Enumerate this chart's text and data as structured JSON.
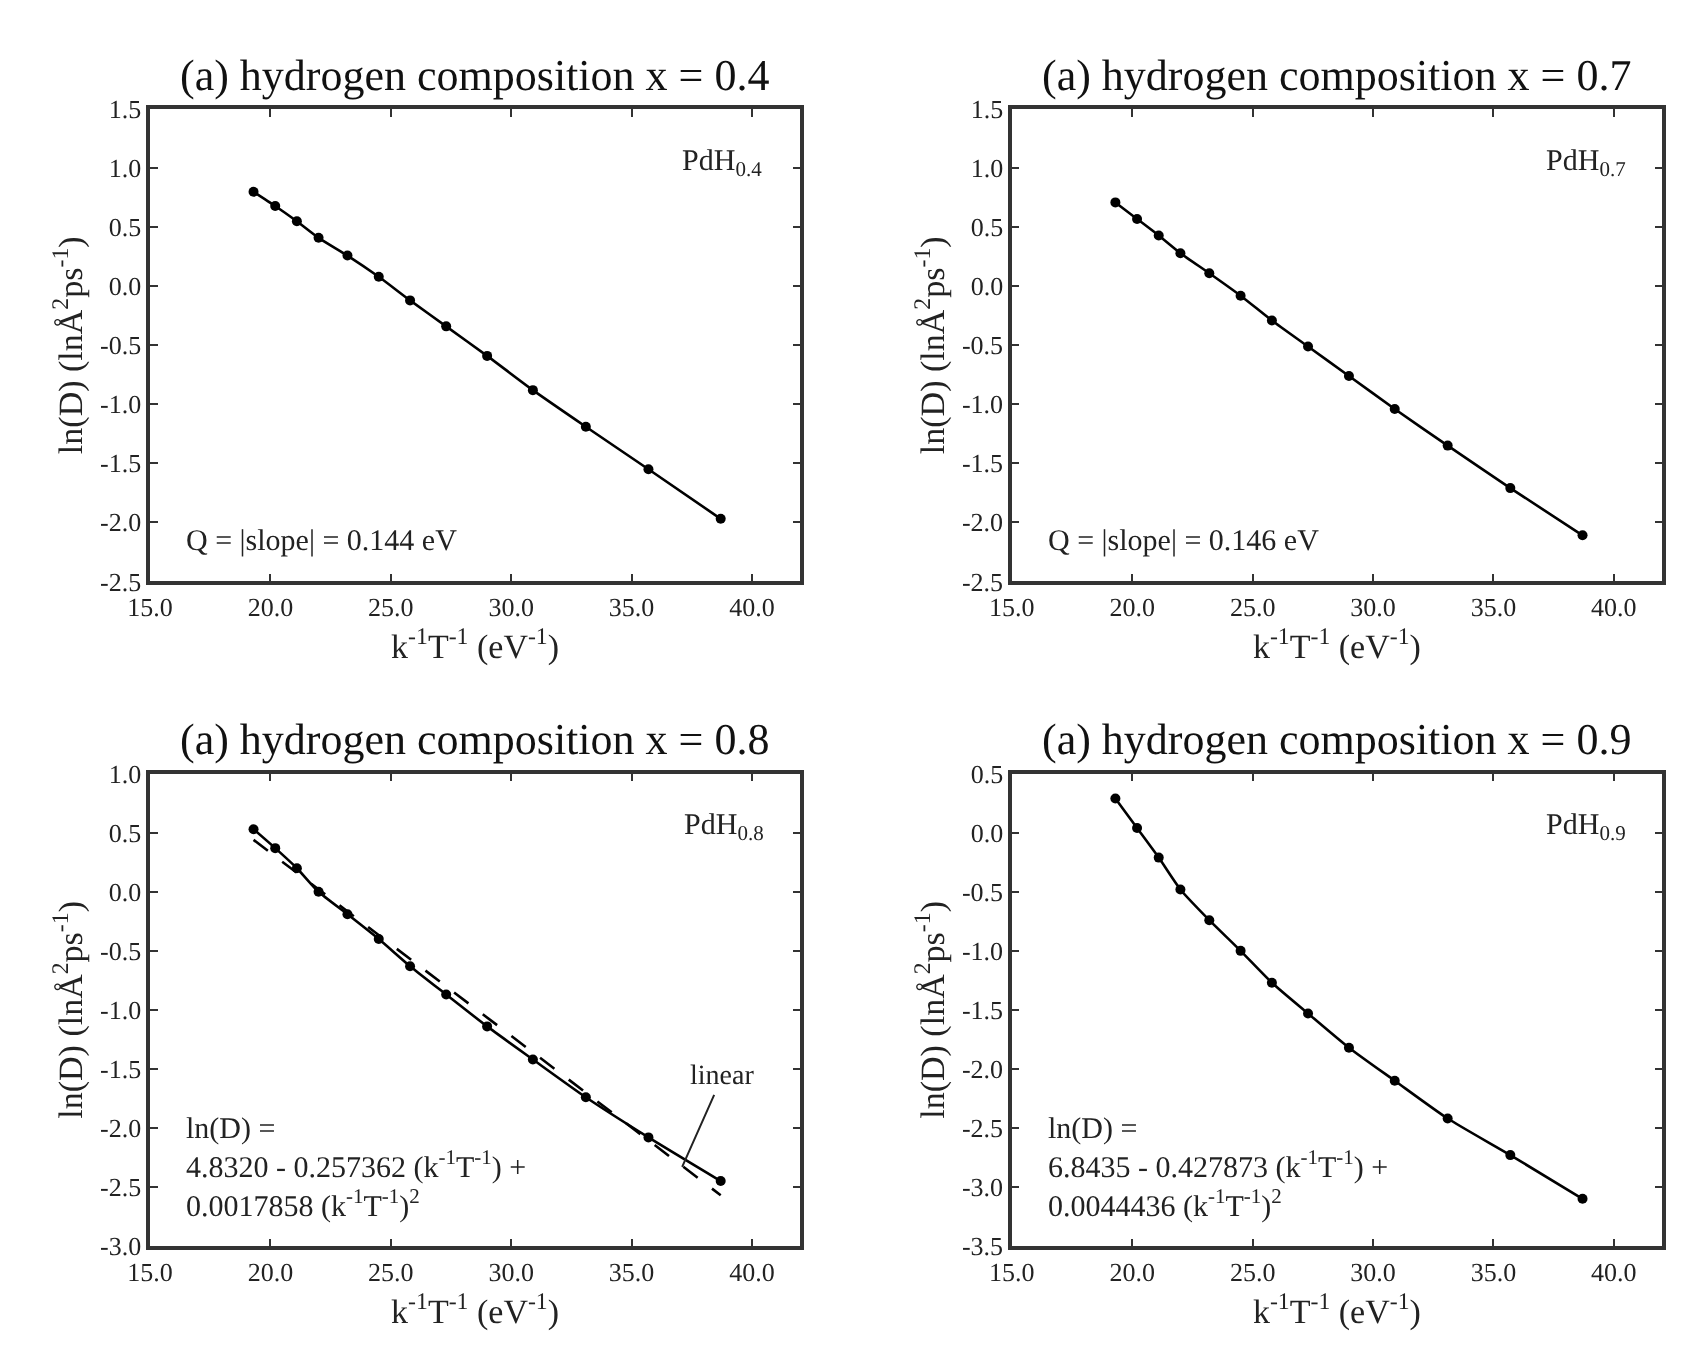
{
  "chart_data": [
    {
      "type": "line",
      "title": "(a) hydrogen composition x = 0.4",
      "xlabel": "k$^{-1}$T$^{-1}$ (eV$^{-1}$)",
      "ylabel": "ln(D) (lnÅ$^{2}$ps$^{-1}$)",
      "x": [
        19.3,
        20.2,
        21.1,
        22.0,
        23.2,
        24.5,
        25.8,
        27.3,
        29.0,
        30.9,
        33.1,
        35.7,
        38.7
      ],
      "series": [
        {
          "color": "#000000",
          "marker": "circle",
          "line_style": "solid",
          "values": [
            0.8,
            0.68,
            0.55,
            0.41,
            0.26,
            0.08,
            -0.12,
            -0.34,
            -0.59,
            -0.88,
            -1.19,
            -1.55,
            -1.97
          ]
        }
      ],
      "annotations": [
        "PdH$_{0.4}$",
        "Q = |slope| = 0.144 eV"
      ],
      "xlim": [
        15,
        42
      ],
      "xticks": [
        {
          "value": 15,
          "label": "15.0"
        },
        {
          "value": 20,
          "label": "20.0"
        },
        {
          "value": 25,
          "label": "25.0"
        },
        {
          "value": 30,
          "label": "30.0"
        },
        {
          "value": 35,
          "label": "35.0"
        },
        {
          "value": 40,
          "label": "40.0"
        }
      ],
      "ylim": [
        -2.5,
        1.5
      ],
      "yticks": [
        -2.5,
        {
          "value": -2,
          "label": "-2.0"
        },
        -1.5,
        {
          "value": -1,
          "label": "-1.0"
        },
        -0.5,
        {
          "value": 0,
          "label": "0.0"
        },
        0.5,
        {
          "value": 1,
          "label": "1.0"
        },
        1.5
      ]
    },
    {
      "type": "line",
      "title": "(a) hydrogen composition x = 0.7",
      "xlabel": "k$^{-1}$T$^{-1}$ (eV$^{-1}$)",
      "ylabel": "ln(D) (lnÅ$^{2}$ps$^{-1}$)",
      "x": [
        19.3,
        20.2,
        21.1,
        22.0,
        23.2,
        24.5,
        25.8,
        27.3,
        29.0,
        30.9,
        33.1,
        35.7,
        38.7
      ],
      "series": [
        {
          "color": "#000000",
          "marker": "circle",
          "line_style": "solid",
          "values": [
            0.71,
            0.57,
            0.43,
            0.28,
            0.11,
            -0.08,
            -0.29,
            -0.51,
            -0.76,
            -1.04,
            -1.35,
            -1.71,
            -2.11
          ]
        }
      ],
      "annotations": [
        "PdH$_{0.7}$",
        "Q = |slope| = 0.146 eV"
      ],
      "xlim": [
        15,
        42
      ],
      "xticks": [
        {
          "value": 15,
          "label": "15.0"
        },
        {
          "value": 20,
          "label": "20.0"
        },
        {
          "value": 25,
          "label": "25.0"
        },
        {
          "value": 30,
          "label": "30.0"
        },
        {
          "value": 35,
          "label": "35.0"
        },
        {
          "value": 40,
          "label": "40.0"
        }
      ],
      "ylim": [
        -2.5,
        1.5
      ],
      "yticks": [
        -2.5,
        {
          "value": -2,
          "label": "-2.0"
        },
        -1.5,
        {
          "value": -1,
          "label": "-1.0"
        },
        -0.5,
        {
          "value": 0,
          "label": "0.0"
        },
        0.5,
        {
          "value": 1,
          "label": "1.0"
        },
        1.5
      ]
    },
    {
      "type": "line",
      "title": "(a) hydrogen composition x = 0.8",
      "xlabel": "k$^{-1}$T$^{-1}$ (eV$^{-1}$)",
      "ylabel": "ln(D) (lnÅ$^{2}$ps$^{-1}$)",
      "x": [
        19.3,
        20.2,
        21.1,
        22.0,
        23.2,
        24.5,
        25.8,
        27.3,
        29.0,
        30.9,
        33.1,
        35.7,
        38.7
      ],
      "series": [
        {
          "color": "#000000",
          "marker": "circle",
          "line_style": "solid",
          "values": [
            0.53,
            0.37,
            0.2,
            0.0,
            -0.19,
            -0.4,
            -0.63,
            -0.87,
            -1.14,
            -1.42,
            -1.74,
            -2.08,
            -2.45
          ]
        },
        {
          "color": "#000000",
          "marker": "none",
          "line_style": "dashed",
          "x": [
            19.3,
            38.7
          ],
          "values": [
            0.44,
            -2.57
          ]
        }
      ],
      "annotations": [
        "PdH$_{0.8}$",
        "ln(D) =\n4.8320 - 0.257362 (k$^{-1}$T$^{-1}$) +\n0.0017858 (k$^{-1}$T$^{-1}$)$^{2}$",
        {
          "text": "linear",
          "x": 37.1,
          "y": -2.33
        }
      ],
      "xlim": [
        15,
        42
      ],
      "xticks": [
        {
          "value": 15,
          "label": "15.0"
        },
        {
          "value": 20,
          "label": "20.0"
        },
        {
          "value": 25,
          "label": "25.0"
        },
        {
          "value": 30,
          "label": "30.0"
        },
        {
          "value": 35,
          "label": "35.0"
        },
        {
          "value": 40,
          "label": "40.0"
        }
      ],
      "ylim": [
        -3.0,
        1.0
      ],
      "yticks": [
        {
          "value": -3,
          "label": "-3.0"
        },
        -2.5,
        {
          "value": -2,
          "label": "-2.0"
        },
        -1.5,
        {
          "value": -1,
          "label": "-1.0"
        },
        -0.5,
        {
          "value": 0,
          "label": "0.0"
        },
        0.5,
        {
          "value": 1,
          "label": "1.0"
        }
      ]
    },
    {
      "type": "line",
      "title": "(a) hydrogen composition x = 0.9",
      "xlabel": "k$^{-1}$T$^{-1}$ (eV$^{-1}$)",
      "ylabel": "ln(D) (lnÅ$^{2}$ps$^{-1}$)",
      "x": [
        19.3,
        20.2,
        21.1,
        22.0,
        23.2,
        24.5,
        25.8,
        27.3,
        29.0,
        30.9,
        33.1,
        35.7,
        38.7
      ],
      "series": [
        {
          "color": "#000000",
          "marker": "circle",
          "line_style": "solid",
          "values": [
            0.29,
            0.04,
            -0.21,
            -0.48,
            -0.74,
            -1.0,
            -1.27,
            -1.53,
            -1.82,
            -2.1,
            -2.42,
            -2.73,
            -3.1
          ]
        }
      ],
      "annotations": [
        "PdH$_{0.9}$",
        "ln(D) =\n6.8435 - 0.427873 (k$^{-1}$T$^{-1}$) +\n0.0044436 (k$^{-1}$T$^{-1}$)$^{2}$"
      ],
      "xlim": [
        15,
        42
      ],
      "xticks": [
        {
          "value": 15,
          "label": "15.0"
        },
        {
          "value": 20,
          "label": "20.0"
        },
        {
          "value": 25,
          "label": "25.0"
        },
        {
          "value": 30,
          "label": "30.0"
        },
        {
          "value": 35,
          "label": "35.0"
        },
        {
          "value": 40,
          "label": "40.0"
        }
      ],
      "ylim": [
        -3.5,
        0.5
      ],
      "yticks": [
        {
          "value": -3.5,
          "label": "-3.5"
        },
        {
          "value": -3,
          "label": "-3.0"
        },
        -2.5,
        {
          "value": -2,
          "label": "-2.0"
        },
        -1.5,
        {
          "value": -1,
          "label": "-1.0"
        },
        -0.5,
        {
          "value": 0,
          "label": "0.0"
        },
        0.5
      ]
    }
  ]
}
